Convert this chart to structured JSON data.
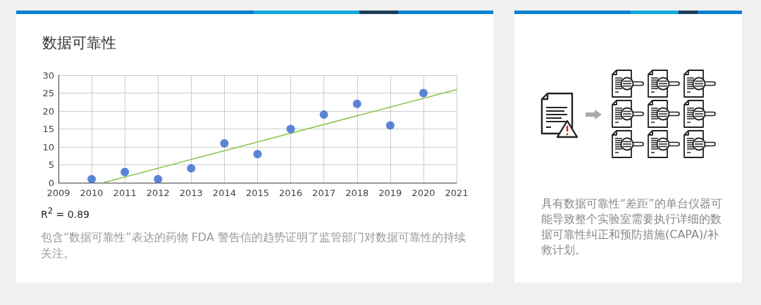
{
  "chart_data": [
    {
      "type": "scatter",
      "title": "数据可靠性",
      "series": [
        {
          "color": "#3366cc",
          "x": [
            2010,
            2011,
            2012,
            2013,
            2014,
            2015,
            2016,
            2017,
            2018,
            2019,
            2020
          ],
          "values": [
            1,
            3,
            1,
            4,
            11,
            8,
            15,
            19,
            22,
            16,
            25
          ]
        },
        {
          "type": "line",
          "color": "#8bc34a",
          "marker": "none",
          "x": [
            2010.35,
            2021
          ],
          "values": [
            0,
            26
          ]
        }
      ],
      "xlim": [
        2009,
        2021
      ],
      "xticks": [
        2009,
        2010,
        2011,
        2012,
        2013,
        2014,
        2015,
        2016,
        2017,
        2018,
        2019,
        2020,
        2021
      ],
      "ylim": [
        0,
        30
      ],
      "yticks": [
        0,
        5,
        10,
        15,
        20,
        25,
        30
      ],
      "grid": true,
      "marker": "circle",
      "annotations": [
        "R$^{2}$ = 0.89",
        "包含“数据可靠性”表达的药物 FDA 警告信的趋势证明了监管部门对数据可靠性的持续关注。"
      ]
    },
    {
      "type": "other",
      "annotations": [
        "具有数据可靠性“差距”的单台仪器可能导致整个实验室需要执行详细的数据可靠性纠正和预防措施(CAPA)/补救计划。"
      ]
    }
  ]
}
